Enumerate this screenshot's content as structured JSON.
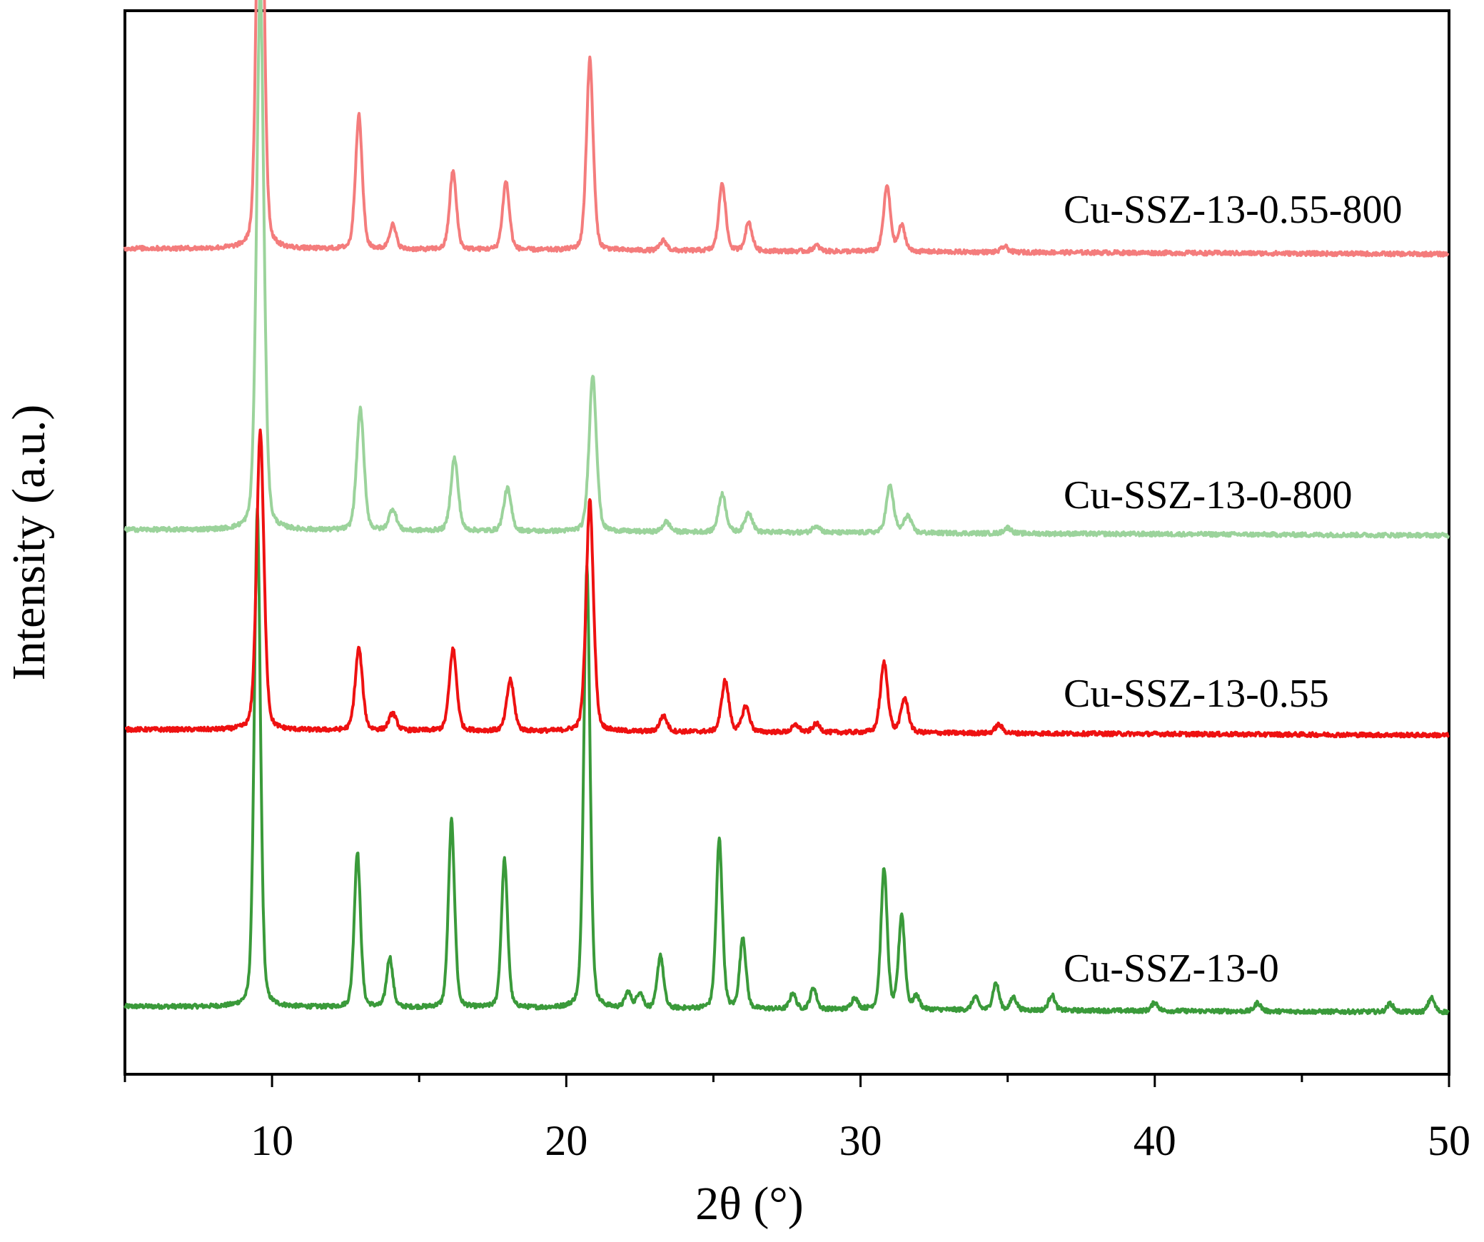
{
  "chart_data": {
    "type": "line",
    "xlabel": "2θ (°)",
    "ylabel": "Intensity (a.u.)",
    "xlim": [
      5,
      50
    ],
    "xticks": [
      10,
      20,
      30,
      40,
      50
    ],
    "y_ticks_labeled": false,
    "grid": false,
    "legend": "inline labels at right of each trace",
    "series": [
      {
        "name": "Cu-SSZ-13-0",
        "color": "#3a9a3a",
        "stack_index": 0,
        "peaks": [
          {
            "x": 9.5,
            "h": 695
          },
          {
            "x": 12.9,
            "h": 218
          },
          {
            "x": 14.0,
            "h": 70
          },
          {
            "x": 16.1,
            "h": 262
          },
          {
            "x": 17.9,
            "h": 208
          },
          {
            "x": 20.7,
            "h": 622
          },
          {
            "x": 22.1,
            "h": 22
          },
          {
            "x": 22.5,
            "h": 22
          },
          {
            "x": 23.2,
            "h": 75
          },
          {
            "x": 25.2,
            "h": 238
          },
          {
            "x": 26.0,
            "h": 100
          },
          {
            "x": 27.7,
            "h": 22
          },
          {
            "x": 28.4,
            "h": 30
          },
          {
            "x": 29.8,
            "h": 16
          },
          {
            "x": 30.8,
            "h": 198
          },
          {
            "x": 31.4,
            "h": 132
          },
          {
            "x": 31.9,
            "h": 18
          },
          {
            "x": 33.9,
            "h": 18
          },
          {
            "x": 34.6,
            "h": 38
          },
          {
            "x": 35.2,
            "h": 18
          },
          {
            "x": 36.5,
            "h": 22
          },
          {
            "x": 40.0,
            "h": 12
          },
          {
            "x": 43.5,
            "h": 12
          },
          {
            "x": 48.0,
            "h": 12
          },
          {
            "x": 49.4,
            "h": 20
          }
        ]
      },
      {
        "name": "Cu-SSZ-13-0.55",
        "color": "#ee1111",
        "stack_index": 1,
        "peaks": [
          {
            "x": 9.6,
            "h": 420
          },
          {
            "x": 12.95,
            "h": 115
          },
          {
            "x": 14.1,
            "h": 24
          },
          {
            "x": 16.15,
            "h": 115
          },
          {
            "x": 18.1,
            "h": 72
          },
          {
            "x": 20.8,
            "h": 325
          },
          {
            "x": 23.3,
            "h": 22
          },
          {
            "x": 25.4,
            "h": 72
          },
          {
            "x": 26.1,
            "h": 36
          },
          {
            "x": 27.8,
            "h": 10
          },
          {
            "x": 28.5,
            "h": 12
          },
          {
            "x": 30.8,
            "h": 98
          },
          {
            "x": 31.5,
            "h": 48
          },
          {
            "x": 34.7,
            "h": 12
          }
        ]
      },
      {
        "name": "Cu-SSZ-13-0-800",
        "color": "#9bd39b",
        "stack_index": 2,
        "peaks": [
          {
            "x": 9.6,
            "h": 760
          },
          {
            "x": 13.0,
            "h": 170
          },
          {
            "x": 14.1,
            "h": 30
          },
          {
            "x": 16.2,
            "h": 102
          },
          {
            "x": 18.0,
            "h": 60
          },
          {
            "x": 20.9,
            "h": 220
          },
          {
            "x": 23.4,
            "h": 14
          },
          {
            "x": 25.3,
            "h": 54
          },
          {
            "x": 26.2,
            "h": 28
          },
          {
            "x": 28.5,
            "h": 10
          },
          {
            "x": 31.0,
            "h": 66
          },
          {
            "x": 31.6,
            "h": 24
          },
          {
            "x": 35.0,
            "h": 8
          }
        ]
      },
      {
        "name": "Cu-SSZ-13-0.55-800",
        "color": "#f47c7c",
        "stack_index": 3,
        "peaks": [
          {
            "x": 9.6,
            "h": 755
          },
          {
            "x": 12.95,
            "h": 188
          },
          {
            "x": 14.1,
            "h": 34
          },
          {
            "x": 16.15,
            "h": 110
          },
          {
            "x": 17.95,
            "h": 96
          },
          {
            "x": 20.8,
            "h": 268
          },
          {
            "x": 23.3,
            "h": 14
          },
          {
            "x": 25.3,
            "h": 96
          },
          {
            "x": 26.2,
            "h": 40
          },
          {
            "x": 28.5,
            "h": 8
          },
          {
            "x": 30.9,
            "h": 92
          },
          {
            "x": 31.4,
            "h": 36
          },
          {
            "x": 34.9,
            "h": 8
          }
        ]
      }
    ]
  }
}
